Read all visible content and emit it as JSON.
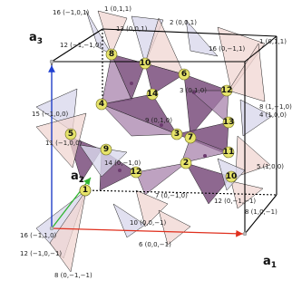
{
  "axes": {
    "a1": {
      "main": "a",
      "sub": "1"
    },
    "a2": {
      "main": "a",
      "sub": "2"
    },
    "a3": {
      "main": "a",
      "sub": "3"
    },
    "colors": {
      "a1": "#e0301e",
      "a2": "#2fb52f",
      "a3": "#1f3fd1"
    }
  },
  "nodes": [
    "1",
    "2",
    "3",
    "4",
    "5",
    "6",
    "7",
    "8",
    "9",
    "10",
    "11",
    "12",
    "13",
    "14",
    "15",
    "16"
  ],
  "labels": [
    "16 (−1,0,1)",
    "1 (0,1,1)",
    "13 (0,0,1)",
    "2 (0,0,1)",
    "12 (−1,−1,0)",
    "16 (0,−1,1)",
    "1 (0,1,1)",
    "3 (0,1,0)",
    "8 (1,−1,0)",
    "4 (1,0,0)",
    "15 (−1,0,0)",
    "9 (0,1,0)",
    "11 (−1,0,0)",
    "14 (0,−1,0)",
    "5 (1,0,0)",
    "7 (0,−1,0)",
    "12 (0,−1,−1)",
    "8 (1,0,−1)",
    "10 (0,0,−1)",
    "6 (0,0,−1)",
    "16 (−1,1,0)",
    "12 (−1,0,−1)",
    "8 (0,−1,−1)"
  ]
}
